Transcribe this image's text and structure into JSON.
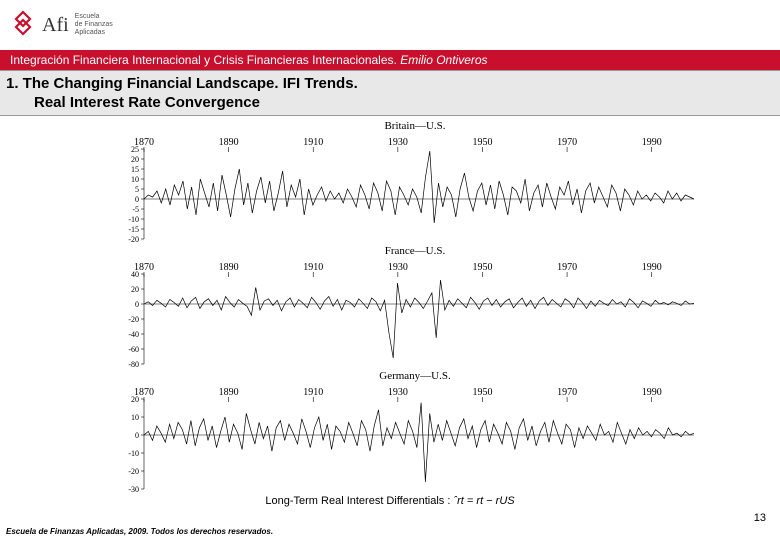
{
  "header": {
    "brand": "Afi",
    "brand_sub": "Escuela\nde Finanzas\nAplicadas",
    "logo_color": "#c8102e"
  },
  "redbar": {
    "course": "Integración Financiera Internacional y Crisis Financieras Internacionales.",
    "author": "Emilio Ontiveros"
  },
  "section": {
    "title": "1. The Changing Financial Landscape. IFI Trends.",
    "subtitle": "Real Interest Rate Convergence"
  },
  "charts": {
    "x_years": [
      1870,
      1890,
      1910,
      1930,
      1950,
      1970,
      1990
    ],
    "panels": [
      {
        "title": "Britain—U.S.",
        "ylim": [
          -20,
          25
        ],
        "yticks": [
          -20,
          -15,
          -10,
          -5,
          0,
          5,
          10,
          15,
          20,
          25
        ],
        "series": [
          0,
          2,
          1,
          4,
          -2,
          5,
          -3,
          7,
          2,
          9,
          -5,
          6,
          -8,
          10,
          3,
          -4,
          8,
          -6,
          12,
          2,
          -9,
          5,
          15,
          -3,
          8,
          -7,
          4,
          11,
          -2,
          9,
          -6,
          3,
          14,
          -4,
          7,
          1,
          10,
          -8,
          5,
          -3,
          2,
          6,
          -1,
          4,
          0,
          3,
          -2,
          5,
          1,
          -4,
          7,
          2,
          -5,
          8,
          3,
          -6,
          9,
          4,
          -8,
          6,
          2,
          -3,
          5,
          1,
          -7,
          11,
          24,
          -12,
          8,
          -4,
          6,
          2,
          -9,
          5,
          13,
          1,
          -6,
          4,
          8,
          -3,
          7,
          -5,
          9,
          2,
          -8,
          6,
          4,
          -2,
          10,
          -6,
          3,
          7,
          -4,
          8,
          1,
          -5,
          6,
          2,
          9,
          -3,
          5,
          -7,
          4,
          8,
          -2,
          6,
          1,
          -4,
          7,
          3,
          -6,
          5,
          2,
          -3,
          4,
          0,
          2,
          -1,
          3,
          1,
          -2,
          4,
          0,
          3,
          -1,
          2,
          1,
          0
        ]
      },
      {
        "title": "France—U.S.",
        "ylim": [
          -80,
          40
        ],
        "yticks": [
          -80,
          -60,
          -40,
          -20,
          0,
          20,
          40
        ],
        "series": [
          0,
          3,
          -2,
          5,
          1,
          -4,
          6,
          2,
          -3,
          8,
          -5,
          4,
          9,
          -6,
          3,
          7,
          -2,
          5,
          -8,
          10,
          2,
          -4,
          6,
          1,
          -3,
          -15,
          22,
          -8,
          4,
          7,
          -2,
          5,
          -9,
          3,
          8,
          -4,
          6,
          1,
          -5,
          9,
          2,
          -7,
          4,
          10,
          -3,
          6,
          -8,
          5,
          2,
          -4,
          7,
          1,
          -6,
          8,
          3,
          -9,
          5,
          -38,
          -72,
          28,
          -12,
          6,
          -4,
          8,
          2,
          -6,
          4,
          15,
          -45,
          32,
          -8,
          5,
          -3,
          7,
          1,
          -5,
          9,
          2,
          -7,
          4,
          8,
          -2,
          6,
          -4,
          3,
          7,
          -5,
          2,
          8,
          -3,
          5,
          -6,
          4,
          9,
          -2,
          6,
          1,
          -4,
          7,
          3,
          -5,
          8,
          2,
          -6,
          4,
          -3,
          5,
          1,
          -2,
          6,
          0,
          3,
          -4,
          7,
          2,
          -5,
          4,
          1,
          -3,
          5,
          0,
          2,
          -1,
          3,
          1,
          -2,
          4,
          0,
          1
        ]
      },
      {
        "title": "Germany—U.S.",
        "ylim": [
          -30,
          20
        ],
        "yticks": [
          -30,
          -20,
          -10,
          0,
          10,
          20
        ],
        "series": [
          0,
          2,
          -3,
          5,
          1,
          -4,
          6,
          -2,
          7,
          3,
          -5,
          8,
          -6,
          4,
          9,
          -3,
          5,
          -7,
          2,
          10,
          -4,
          6,
          1,
          -8,
          12,
          3,
          -5,
          7,
          -2,
          5,
          -9,
          4,
          8,
          -3,
          6,
          1,
          -5,
          9,
          2,
          -7,
          4,
          10,
          -3,
          6,
          -8,
          5,
          2,
          -4,
          7,
          1,
          -6,
          8,
          3,
          -9,
          5,
          14,
          -6,
          4,
          -2,
          7,
          1,
          -5,
          8,
          2,
          -7,
          18,
          -26,
          12,
          -4,
          6,
          -3,
          8,
          1,
          -6,
          4,
          9,
          -2,
          5,
          -7,
          3,
          8,
          -4,
          6,
          1,
          -5,
          7,
          2,
          -8,
          4,
          9,
          -3,
          5,
          -6,
          2,
          7,
          -4,
          8,
          1,
          -5,
          6,
          3,
          -7,
          4,
          -2,
          5,
          1,
          -3,
          6,
          0,
          2,
          -4,
          7,
          1,
          -5,
          3,
          -2,
          4,
          0,
          2,
          -1,
          3,
          1,
          -2,
          4,
          0,
          1,
          -1,
          2,
          0,
          1
        ]
      }
    ]
  },
  "caption": {
    "prefix": "Long-Term Real Interest Differentials : ",
    "formula": "ˆrt = rt − rUS"
  },
  "footer": "Escuela de Finanzas Aplicadas, 2009. Todos los derechos reservados.",
  "pagenum": "13",
  "colors": {
    "red": "#c8102e",
    "grey": "#e8e8e8"
  }
}
